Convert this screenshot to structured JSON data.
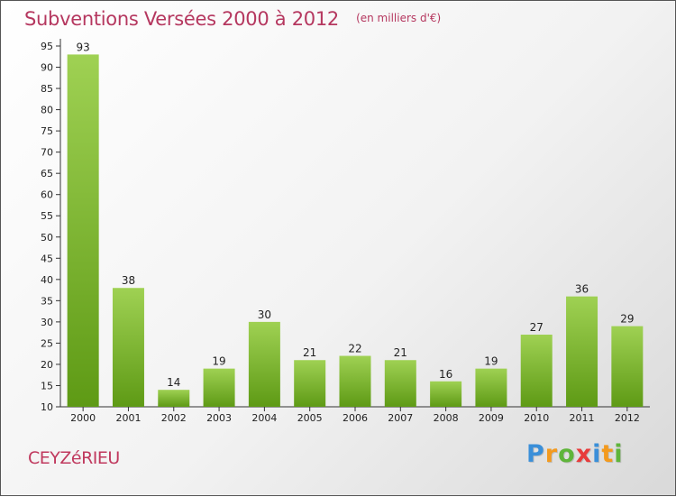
{
  "chart_data": {
    "type": "bar",
    "title": "Subventions Versées 2000 à 2012",
    "subtitle": "(en milliers d'€)",
    "categories": [
      "2000",
      "2001",
      "2002",
      "2003",
      "2004",
      "2005",
      "2006",
      "2007",
      "2008",
      "2009",
      "2010",
      "2011",
      "2012"
    ],
    "values": [
      93,
      38,
      14,
      19,
      30,
      21,
      22,
      21,
      16,
      19,
      27,
      36,
      29
    ],
    "xlabel": "",
    "ylabel": "",
    "ylim": [
      10,
      95
    ],
    "yticks": [
      10,
      15,
      20,
      25,
      30,
      35,
      40,
      45,
      50,
      55,
      60,
      65,
      70,
      75,
      80,
      85,
      90,
      95
    ],
    "grid": false,
    "colors": {
      "bar_top": "#9fd153",
      "bar_bottom": "#5e9a15",
      "title": "#b5375f"
    }
  },
  "footer": {
    "commune": "CEYZéRIEU",
    "logo": {
      "letters": [
        "P",
        "r",
        "o",
        "x",
        "i",
        "t",
        "i"
      ],
      "colors": [
        "#3a8fd9",
        "#f39a1e",
        "#5fb53a",
        "#e83b3b",
        "#3a8fd9",
        "#f39a1e",
        "#5fb53a"
      ]
    }
  }
}
